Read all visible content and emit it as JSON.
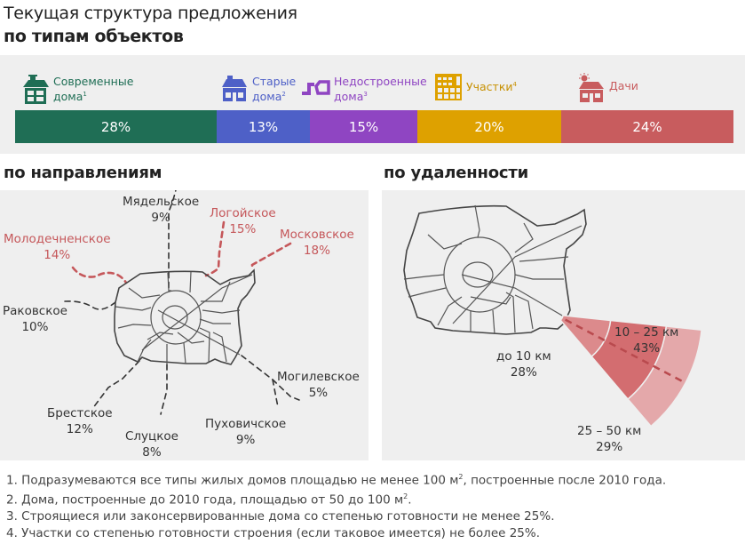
{
  "header": {
    "title": "Текущая структура предложения",
    "subtitle": "по типам объектов"
  },
  "colors": {
    "modern": "#1f6e55",
    "old": "#4e60c7",
    "unfinished": "#8f45c2",
    "plots": "#dea100",
    "dachas": "#c85c5e",
    "band_bg": "#efefef",
    "route_red": "#c5575a"
  },
  "chart_data": [
    {
      "type": "bar",
      "title": "по типам объектов",
      "orientation": "horizontal-stacked",
      "categories": [
        "Современные дома¹",
        "Старые дома²",
        "Недостроенные дома³",
        "Участки⁴",
        "Дачи"
      ],
      "values": [
        28,
        13,
        15,
        20,
        24
      ],
      "unit": "%",
      "legend": [
        {
          "line1": "Современные",
          "line2": "дома",
          "sup": "1",
          "icon": "modern-house-icon"
        },
        {
          "line1": "Старые",
          "line2": "дома",
          "sup": "2",
          "icon": "old-house-icon"
        },
        {
          "line1": "Недостроенные",
          "line2": "дома",
          "sup": "3",
          "icon": "unfinished-house-icon"
        },
        {
          "line1": "Участки",
          "line2": "",
          "sup": "4",
          "icon": "plot-grid-icon"
        },
        {
          "line1": "Дачи",
          "line2": "",
          "sup": "",
          "icon": "dacha-sun-icon"
        }
      ],
      "data_labels": [
        "28%",
        "13%",
        "15%",
        "20%",
        "24%"
      ]
    },
    {
      "type": "table",
      "title": "по направлениям",
      "directions": [
        {
          "name": "Мядельское",
          "value": "9%",
          "highlight": false
        },
        {
          "name": "Логойское",
          "value": "15%",
          "highlight": true
        },
        {
          "name": "Молодечненское",
          "value": "14%",
          "highlight": true
        },
        {
          "name": "Московское",
          "value": "18%",
          "highlight": true
        },
        {
          "name": "Раковское",
          "value": "10%",
          "highlight": false
        },
        {
          "name": "Могилевское",
          "value": "5%",
          "highlight": false
        },
        {
          "name": "Брестское",
          "value": "12%",
          "highlight": false
        },
        {
          "name": "Пуховичское",
          "value": "9%",
          "highlight": false
        },
        {
          "name": "Слуцкое",
          "value": "8%",
          "highlight": false
        }
      ]
    },
    {
      "type": "pie",
      "title": "по удаленности",
      "categories": [
        "до 10 км",
        "10 – 25 км",
        "25 – 50 км"
      ],
      "values": [
        28,
        43,
        29
      ],
      "labels": [
        "28%",
        "43%",
        "29%"
      ]
    }
  ],
  "footnotes": [
    {
      "text": "1. Подразумеваются все типы жилых домов площадью не менее 100 м",
      "sup": "2",
      "tail": ", построенные после 2010 года."
    },
    {
      "text": "2. Дома, построенные до 2010 года, площадью от 50 до 100 м",
      "sup": "2",
      "tail": "."
    },
    {
      "text": "3. Строящиеся или законсервированные дома со степенью готовности не менее 25%.",
      "sup": "",
      "tail": ""
    },
    {
      "text": "4. Участки со степенью готовности строения (если таковое имеется) не более 25%.",
      "sup": "",
      "tail": ""
    }
  ]
}
